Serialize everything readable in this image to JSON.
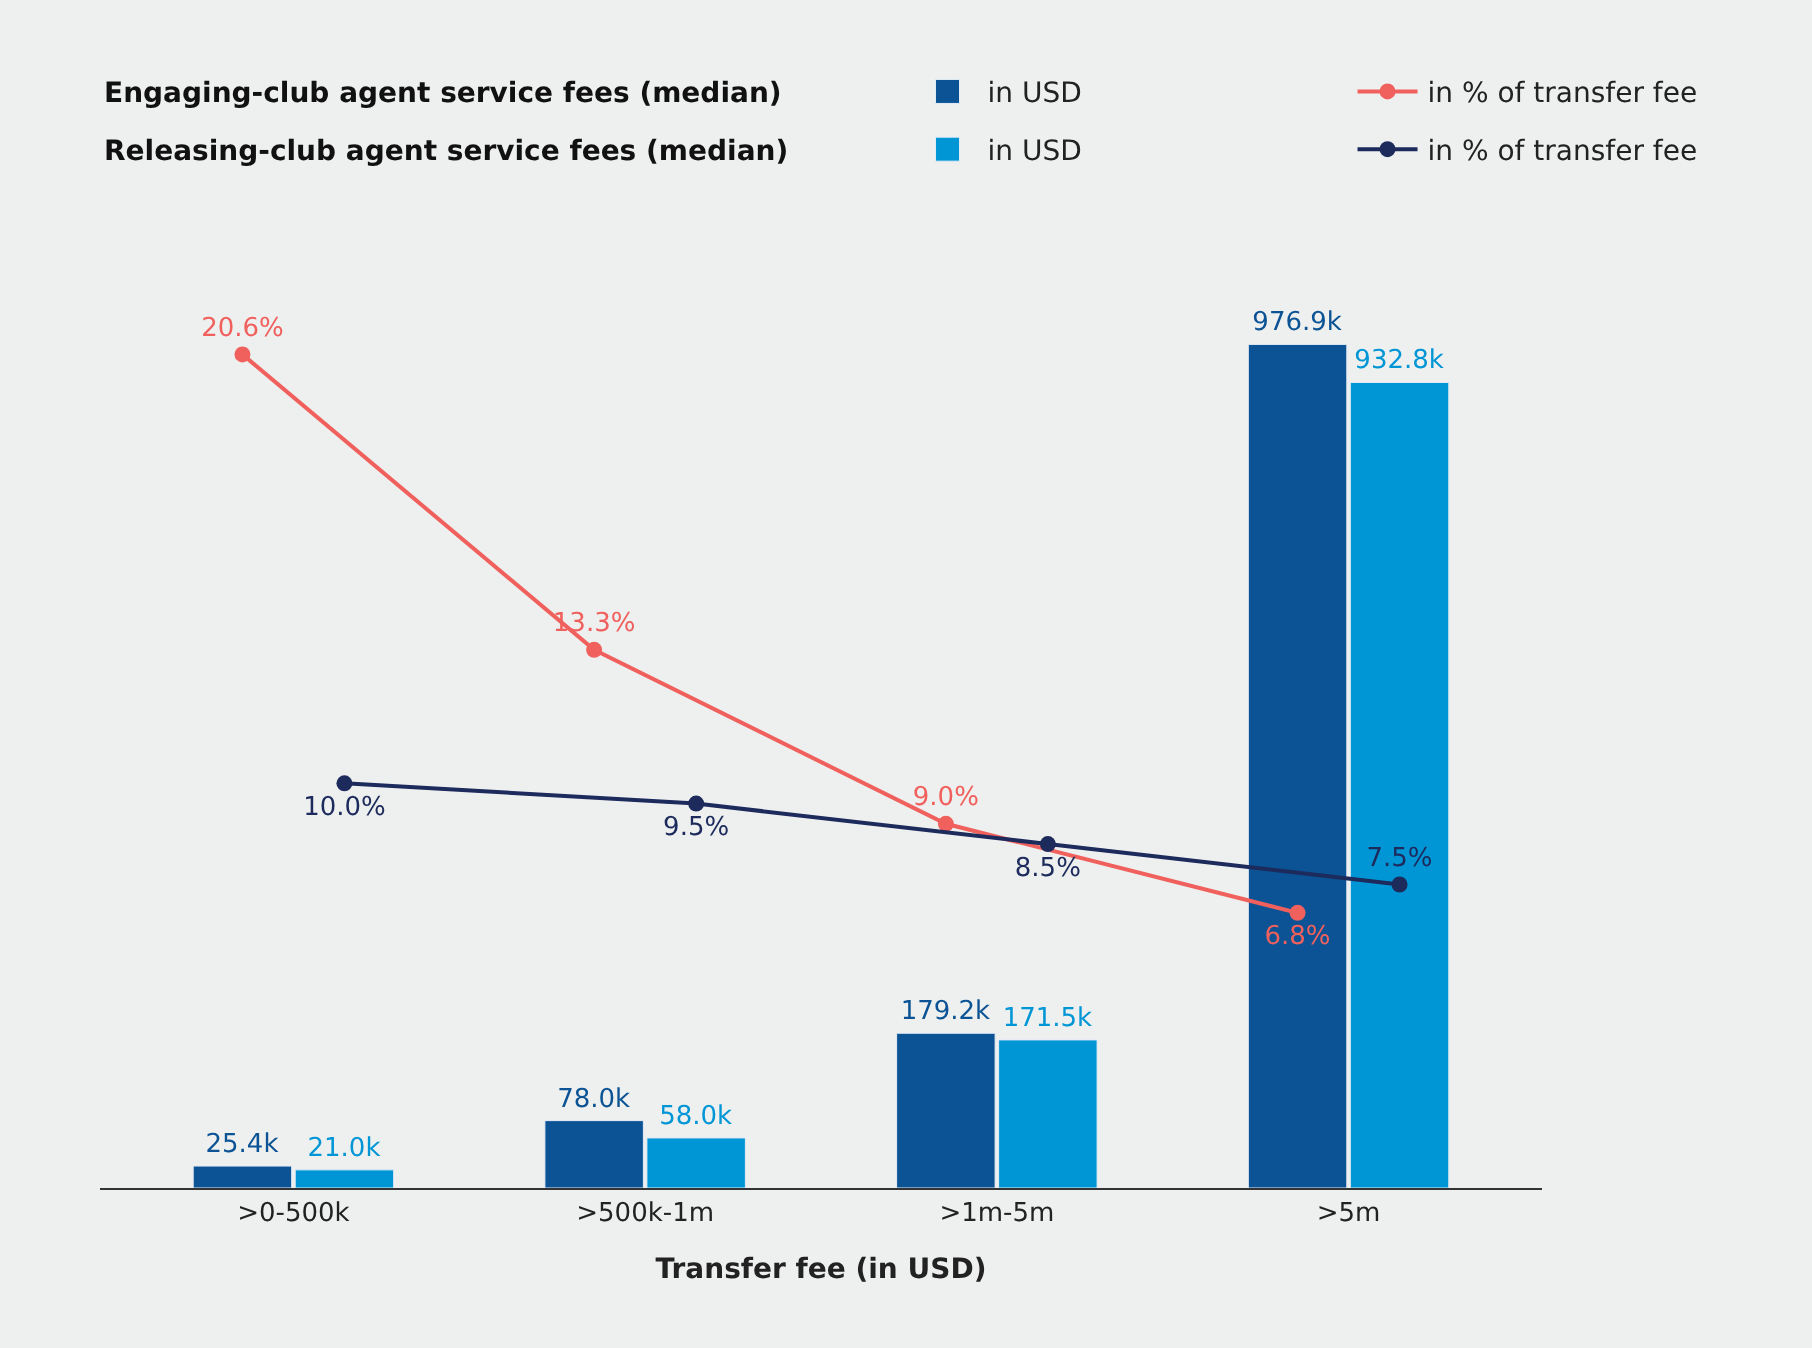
{
  "chart_data": {
    "type": "bar",
    "xlabel": "Transfer fee (in USD)",
    "categories": [
      ">0-500k",
      ">500k-1m",
      ">1m-5m",
      ">5m"
    ],
    "series": [
      {
        "name": "in USD",
        "color": "#0b5394",
        "values": [
          25.4,
          78.0,
          179.2,
          976.9
        ],
        "value_labels": [
          "25.4k",
          "78.0k",
          "179.2k",
          "976.9k"
        ]
      },
      {
        "name": "in % of transfer fee",
        "type": "line",
        "axis": "y2",
        "color": "#f0605d",
        "values": [
          20.6,
          13.3,
          9.0,
          6.8
        ],
        "value_labels": [
          "20.6%",
          "13.3%",
          "9.0%",
          "6.8%"
        ]
      },
      {
        "name": "in USD",
        "color": "#0096d6",
        "values": [
          21.0,
          58.0,
          171.5,
          932.8
        ],
        "value_labels": [
          "21.0k",
          "58.0k",
          "171.5k",
          "932.8k"
        ]
      },
      {
        "name": "in % of transfer fee",
        "type": "line",
        "axis": "y2",
        "color": "#1c2a5c",
        "values": [
          10.0,
          9.5,
          8.5,
          7.5
        ],
        "value_labels": [
          "10.0%",
          "9.5%",
          "8.5%",
          "7.5%"
        ]
      }
    ],
    "annotations": [
      "Engaging-club agent service fees (median)",
      "Releasing-club agent service fees (median)"
    ],
    "legend": "top right",
    "marker": "circle",
    "grid": false
  }
}
